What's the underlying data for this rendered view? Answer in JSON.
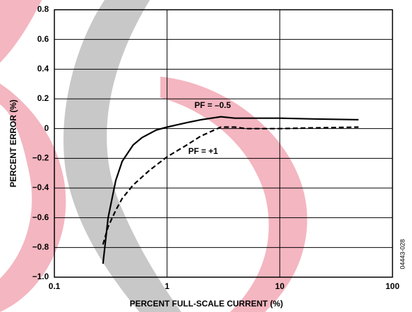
{
  "chart_data": {
    "type": "line",
    "xlabel": "PERCENT FULL-SCALE CURRENT (%)",
    "ylabel": "PERCENT ERROR (%)",
    "figure_id": "04443-028",
    "xscale": "log",
    "xlim": [
      0.1,
      100
    ],
    "xticks": [
      0.1,
      1,
      10,
      100
    ],
    "ylim": [
      -1.0,
      0.8
    ],
    "yticks": [
      0.8,
      0.6,
      0.4,
      0.2,
      0,
      {
        "value": -0.2,
        "label": "−0.2"
      },
      {
        "value": -0.4,
        "label": "−0.4"
      },
      {
        "value": -0.6,
        "label": "−0.6"
      },
      {
        "value": -0.8,
        "label": "−0.8"
      },
      {
        "value": -1.0,
        "label": "−1.0"
      }
    ],
    "grid": true,
    "series": [
      {
        "name": "PF = –0.5",
        "color": "#000000",
        "dash": false,
        "x": [
          0.27,
          0.3,
          0.35,
          0.4,
          0.5,
          0.6,
          0.8,
          1,
          1.5,
          2,
          3,
          4,
          5,
          10,
          20,
          50
        ],
        "values": [
          -0.91,
          -0.6,
          -0.35,
          -0.22,
          -0.11,
          -0.06,
          -0.01,
          0.01,
          0.04,
          0.06,
          0.08,
          0.07,
          0.07,
          0.07,
          0.065,
          0.06
        ]
      },
      {
        "name": "PF = +1",
        "color": "#000000",
        "dash": true,
        "x": [
          0.27,
          0.3,
          0.35,
          0.4,
          0.5,
          0.7,
          1,
          1.5,
          2,
          3,
          4,
          5,
          10,
          20,
          50
        ],
        "values": [
          -0.78,
          -0.66,
          -0.55,
          -0.47,
          -0.38,
          -0.28,
          -0.19,
          -0.11,
          -0.05,
          0.01,
          0.01,
          0,
          0,
          0.005,
          0.01
        ]
      }
    ]
  }
}
